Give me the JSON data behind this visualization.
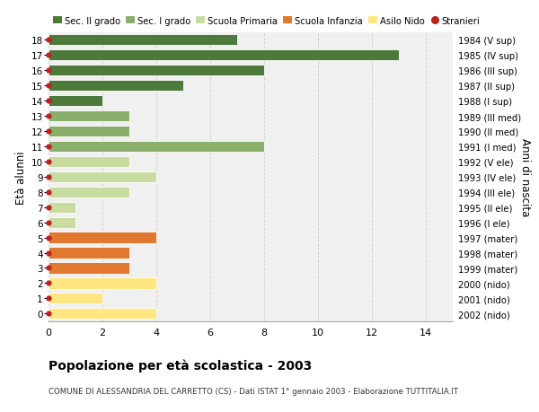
{
  "ages": [
    0,
    1,
    2,
    3,
    4,
    5,
    6,
    7,
    8,
    9,
    10,
    11,
    12,
    13,
    14,
    15,
    16,
    17,
    18
  ],
  "right_labels": [
    "2002 (nido)",
    "2001 (nido)",
    "2000 (nido)",
    "1999 (mater)",
    "1998 (mater)",
    "1997 (mater)",
    "1996 (I ele)",
    "1995 (II ele)",
    "1994 (III ele)",
    "1993 (IV ele)",
    "1992 (V ele)",
    "1991 (I med)",
    "1990 (II med)",
    "1989 (III med)",
    "1988 (I sup)",
    "1987 (II sup)",
    "1986 (III sup)",
    "1985 (IV sup)",
    "1984 (V sup)"
  ],
  "values": [
    4,
    2,
    4,
    3,
    3,
    4,
    1,
    1,
    3,
    4,
    3,
    8,
    3,
    3,
    2,
    5,
    8,
    13,
    7
  ],
  "bar_colors": [
    "#FFE680",
    "#FFE680",
    "#FFE680",
    "#E07830",
    "#E07830",
    "#E07830",
    "#C8DCA0",
    "#C8DCA0",
    "#C8DCA0",
    "#C8DCA0",
    "#C8DCA0",
    "#8AAF6A",
    "#8AAF6A",
    "#8AAF6A",
    "#4D7A3A",
    "#4D7A3A",
    "#4D7A3A",
    "#4D7A3A",
    "#4D7A3A"
  ],
  "dot_color": "#BB2222",
  "grid_color": "#CCCCCC",
  "bg_color": "#FFFFFF",
  "plot_bg_color": "#F0F0F0",
  "legend_items": [
    {
      "label": "Sec. II grado",
      "color": "#4D7A3A"
    },
    {
      "label": "Sec. I grado",
      "color": "#8AAF6A"
    },
    {
      "label": "Scuola Primaria",
      "color": "#C8DCA0"
    },
    {
      "label": "Scuola Infanzia",
      "color": "#E07830"
    },
    {
      "label": "Asilo Nido",
      "color": "#FFE680"
    },
    {
      "label": "Stranieri",
      "color": "#BB2222"
    }
  ],
  "ylabel_left": "Età alunni",
  "ylabel_right": "Anni di nascita",
  "title": "Popolazione per età scolastica - 2003",
  "subtitle": "COMUNE DI ALESSANDRIA DEL CARRETTO (CS) - Dati ISTAT 1° gennaio 2003 - Elaborazione TUTTITALIA.IT",
  "xlim": [
    0,
    15
  ],
  "ylim": [
    -0.5,
    18.5
  ],
  "xticks": [
    0,
    2,
    4,
    6,
    8,
    10,
    12,
    14
  ]
}
